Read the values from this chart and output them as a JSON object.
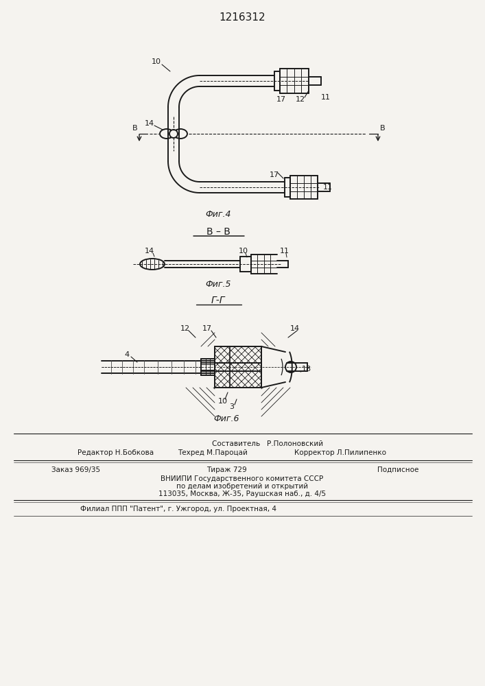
{
  "title": "1216312",
  "bg_color": "#f5f3ef",
  "line_color": "#1a1a1a",
  "fig4_caption": "Фиг.4",
  "fig5_caption": "Фиг.5",
  "fig6_caption": "Фиг.6",
  "section_b": "В – В",
  "section_g": "Г-Г",
  "footer_line1_left": "Редактор Н.Бобкова",
  "footer_line1_mid1": "Составитель   Р.Полоновский",
  "footer_line1_mid2": "Техред М.Пароцай",
  "footer_line1_right": "Корректор Л.Пилипенко",
  "footer_order": "Заказ 969/35",
  "footer_tirazh": "Тираж 729",
  "footer_podp": "Подписное",
  "footer_vniipи": "ВНИИПИ Государственного комитета СССР",
  "footer_dela": "по делам изобретений и открытий",
  "footer_addr": "113035, Москва, Ж-35, Раушская наб., д. 4/5",
  "footer_filial": "Филиал ППП \"Патент\", г. Ужгород, ул. Проектная, 4"
}
